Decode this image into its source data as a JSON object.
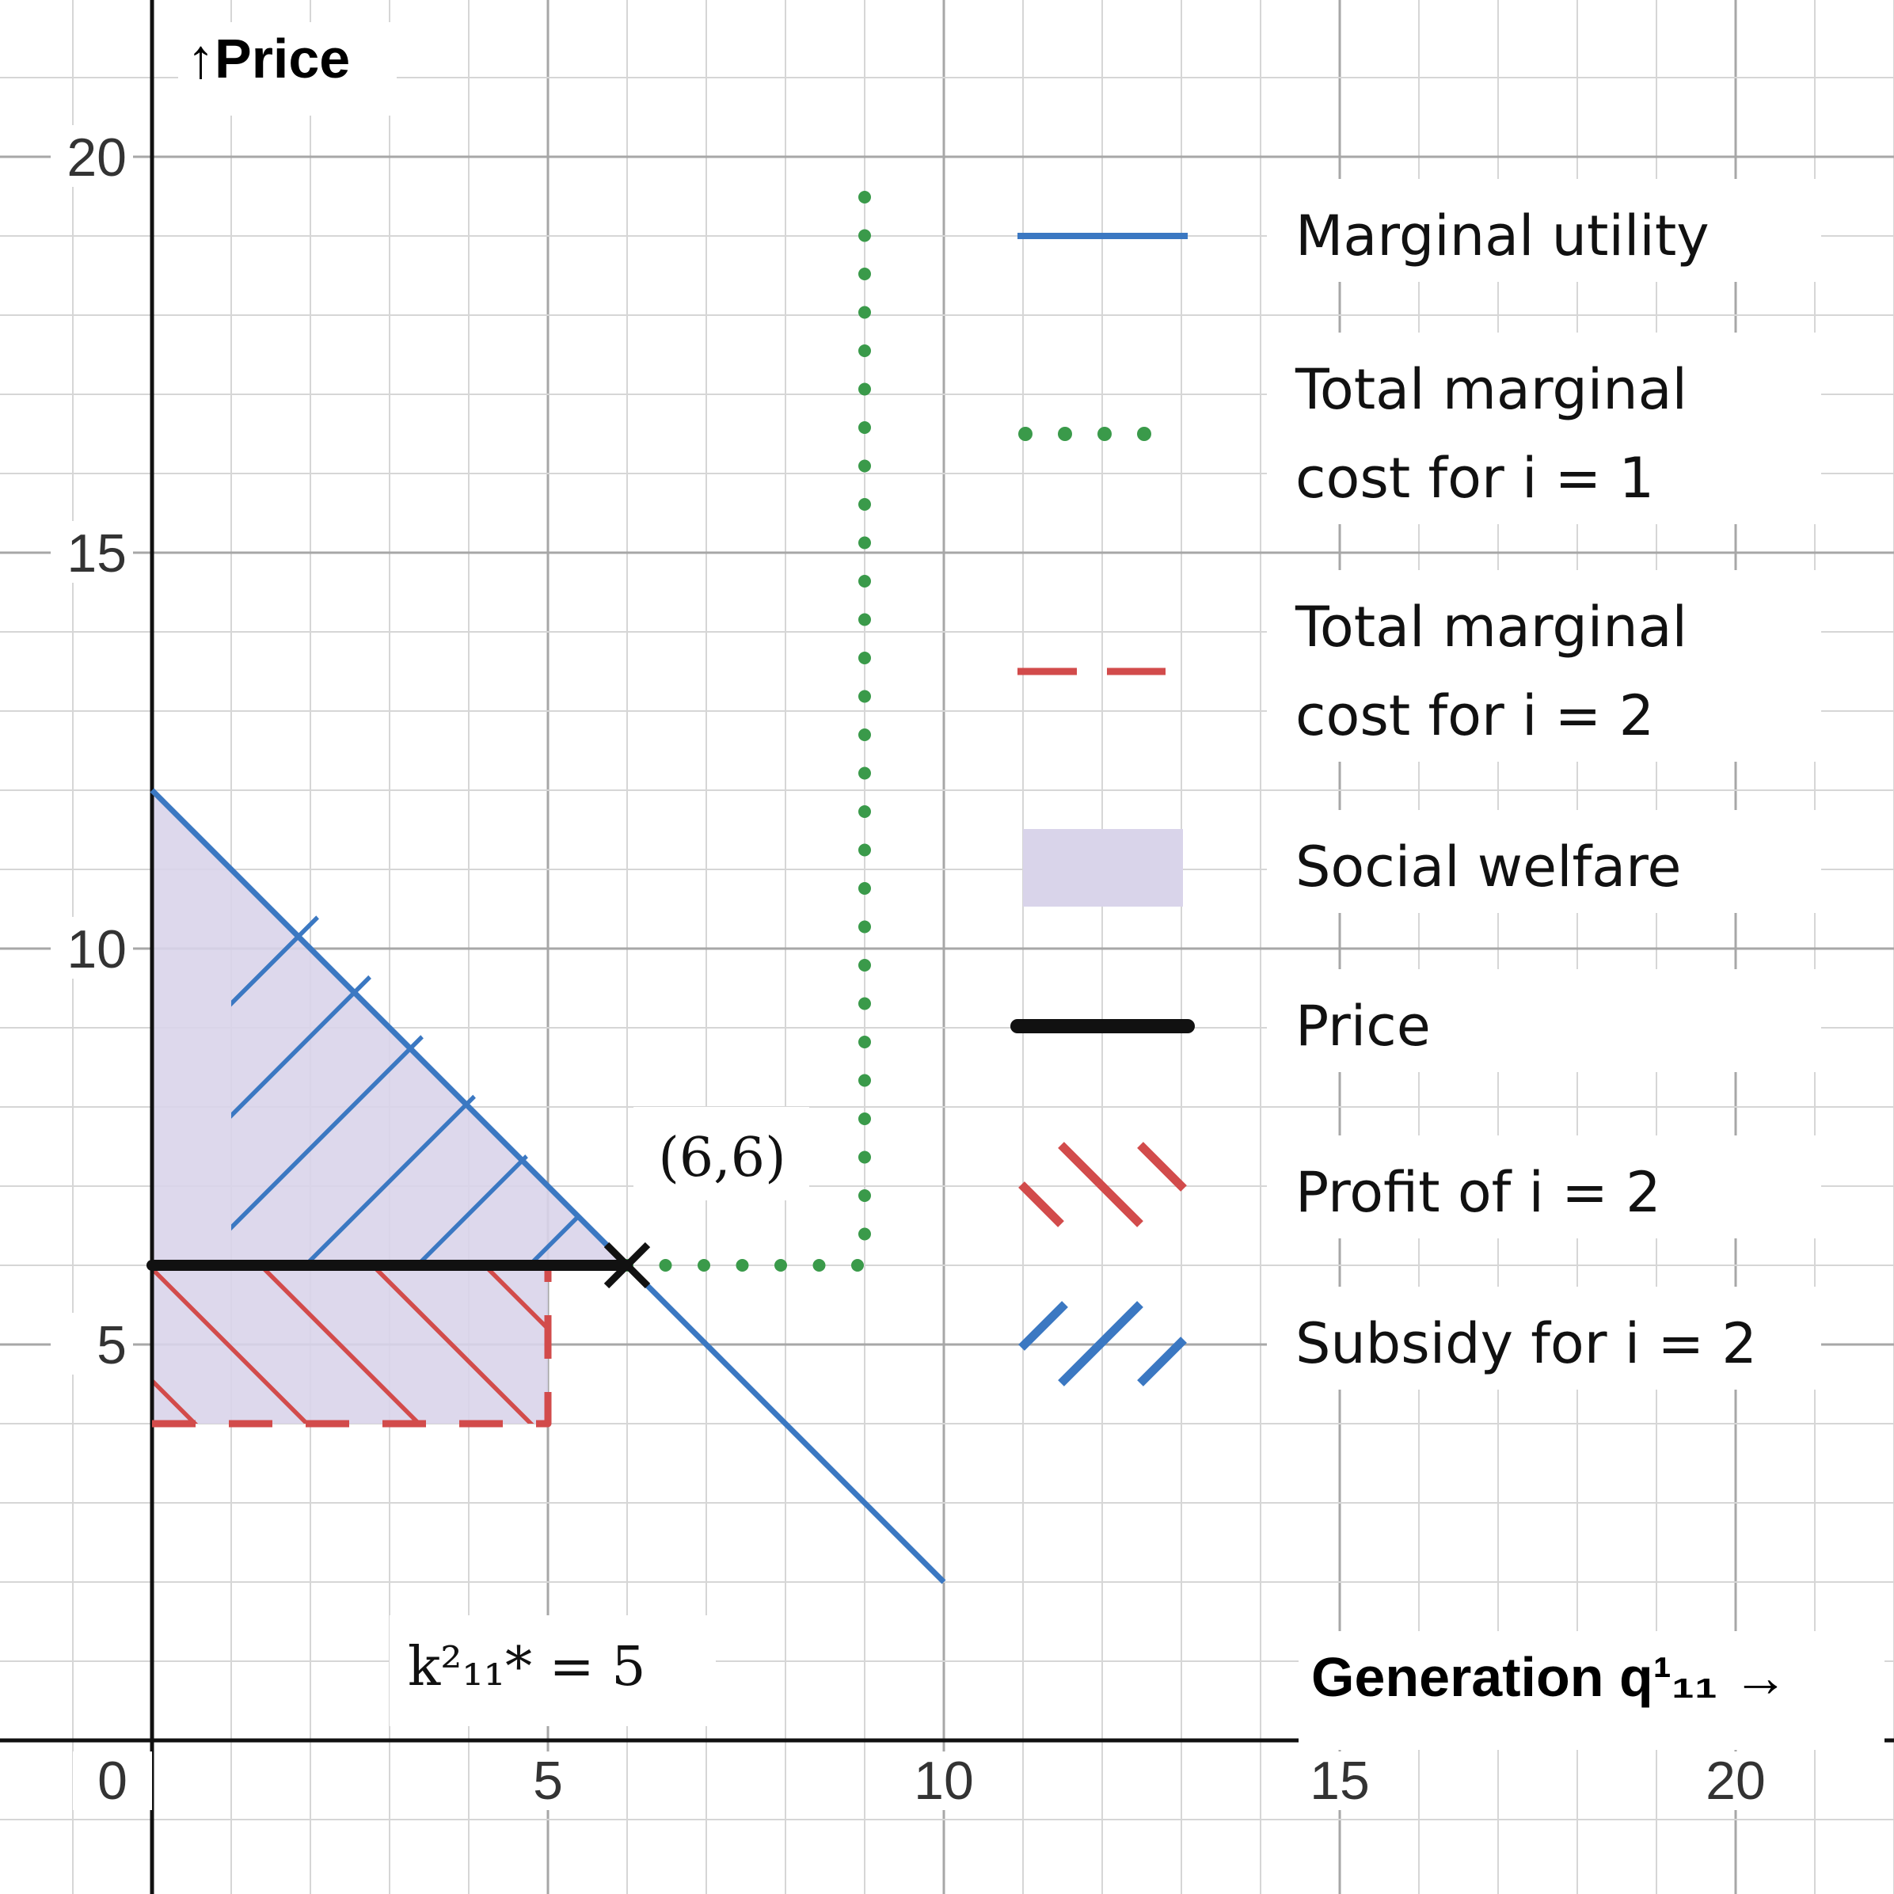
{
  "chart_data": {
    "type": "line",
    "xlabel": "Generation q¹₁₁ →",
    "ylabel": "↑Price",
    "xlim": [
      -1.9,
      22.0
    ],
    "ylim": [
      -1.9,
      22.0
    ],
    "x_ticks": [
      0,
      5,
      10,
      15,
      20
    ],
    "y_ticks": [
      5,
      10,
      15,
      20
    ],
    "x_tick_labels": [
      "0",
      "5",
      "10",
      "15",
      "20"
    ],
    "y_tick_labels": [
      "5",
      "10",
      "15",
      "20"
    ],
    "grid": true,
    "minor_grid_step": 1,
    "legend_position": "right",
    "series": [
      {
        "name": "Marginal utility",
        "color": "#3b78c2",
        "style": "solid",
        "points": [
          [
            0,
            12
          ],
          [
            10,
            2
          ]
        ]
      },
      {
        "name": "Total marginal cost for i = 1",
        "color": "#3a9a4a",
        "style": "dotted",
        "points": [
          [
            6,
            6
          ],
          [
            9,
            6
          ],
          [
            9,
            19.7
          ]
        ]
      },
      {
        "name": "Total marginal cost for i = 2",
        "color": "#d24b4b",
        "style": "dashed",
        "points": [
          [
            0,
            4
          ],
          [
            5,
            4
          ],
          [
            5,
            6
          ]
        ]
      },
      {
        "name": "Price",
        "color": "#111111",
        "style": "thick",
        "points": [
          [
            0,
            6
          ],
          [
            6,
            6
          ]
        ]
      }
    ],
    "areas": [
      {
        "name": "Social welfare",
        "color": "#d9d4ea",
        "polygon": [
          [
            0,
            12
          ],
          [
            6,
            6
          ],
          [
            5,
            6
          ],
          [
            5,
            4
          ],
          [
            0,
            4
          ]
        ]
      },
      {
        "name": "Profit of i = 2",
        "color": "#d24b4b",
        "style": "hatch",
        "polygon": [
          [
            0,
            6
          ],
          [
            5,
            6
          ],
          [
            5,
            4
          ],
          [
            0,
            4
          ]
        ]
      },
      {
        "name": "Subsidy for i = 2",
        "color": "#3b78c2",
        "style": "hatch",
        "polygon": [
          [
            1,
            10.5
          ],
          [
            1,
            6
          ],
          [
            5.5,
            6
          ],
          [
            5.5,
            6.5
          ],
          [
            2,
            10.5
          ]
        ]
      }
    ],
    "legend": [
      {
        "label": "Marginal utility",
        "kind": "solid",
        "color": "#3b78c2"
      },
      {
        "label_lines": [
          "Total marginal",
          "cost for "
        ],
        "math": "i = 1",
        "kind": "dotted",
        "color": "#3a9a4a"
      },
      {
        "label_lines": [
          "Total marginal",
          "cost for "
        ],
        "math": "i = 2",
        "kind": "dashed",
        "color": "#d24b4b"
      },
      {
        "label": "Social welfare",
        "kind": "area",
        "color": "#d9d4ea"
      },
      {
        "label": "Price",
        "kind": "thick",
        "color": "#111111"
      },
      {
        "label": "Profit of ",
        "math": "i = 2",
        "kind": "hatch-red",
        "color": "#d24b4b"
      },
      {
        "label": "Subsidy for ",
        "math": "i = 2",
        "kind": "hatch-blue",
        "color": "#3b78c2"
      }
    ],
    "annotations": [
      {
        "text": "(6,6)",
        "x": 6,
        "y": 6,
        "marker": "x"
      },
      {
        "text": "k²₁₁* = 5",
        "x": 5,
        "y": 1
      }
    ]
  }
}
